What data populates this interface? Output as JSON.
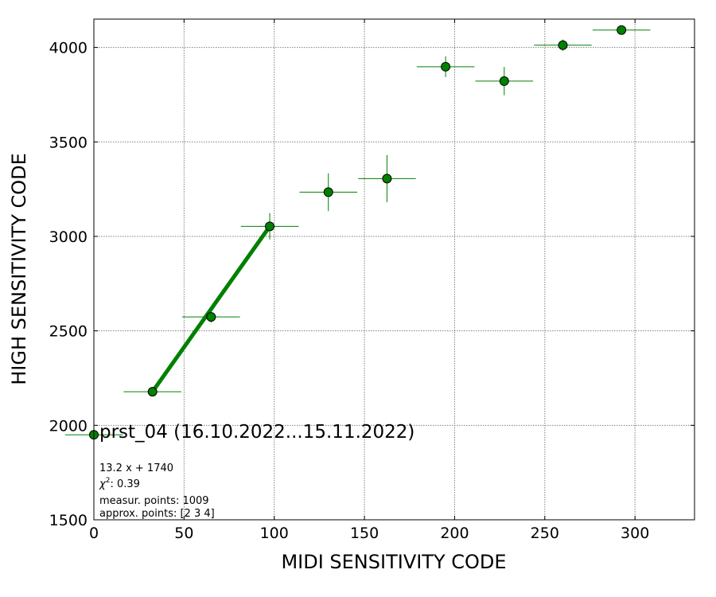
{
  "chart_data": {
    "type": "scatter",
    "xlabel": "MIDI SENSITIVITY CODE",
    "ylabel": "HIGH SENSITIVITY CODE",
    "xlim": [
      0,
      333
    ],
    "ylim": [
      1500,
      4150
    ],
    "xticks": [
      0,
      50,
      100,
      150,
      200,
      250,
      300
    ],
    "yticks": [
      1500,
      2000,
      2500,
      3000,
      3500,
      4000
    ],
    "grid": true,
    "marker_color": "#008000",
    "marker_edge_color": "#000000",
    "errorbar_color": "#008000",
    "fit_line_color": "#008000",
    "points": [
      {
        "x": 0,
        "y": 1950,
        "xerr": 16,
        "yerr": 0
      },
      {
        "x": 32.5,
        "y": 2178,
        "xerr": 16,
        "yerr": 10
      },
      {
        "x": 65,
        "y": 2574,
        "xerr": 16,
        "yerr": 30
      },
      {
        "x": 97.5,
        "y": 3053,
        "xerr": 16,
        "yerr": 70
      },
      {
        "x": 130,
        "y": 3234,
        "xerr": 16,
        "yerr": 100
      },
      {
        "x": 162.5,
        "y": 3306,
        "xerr": 16,
        "yerr": 125
      },
      {
        "x": 195,
        "y": 3898,
        "xerr": 16,
        "yerr": 55
      },
      {
        "x": 227.5,
        "y": 3822,
        "xerr": 16,
        "yerr": 75
      },
      {
        "x": 260,
        "y": 4012,
        "xerr": 16,
        "yerr": 30
      },
      {
        "x": 292.5,
        "y": 4092,
        "xerr": 16,
        "yerr": 8
      }
    ],
    "fit_line": {
      "x": [
        32.5,
        97.5
      ],
      "y": [
        2178,
        3053
      ]
    },
    "annotation": {
      "title": "prst_04 (16.10.2022...15.11.2022)",
      "fit": "13.2 x + 1740",
      "chi2_symbol": "χ",
      "chi2_exp": "2",
      "chi2_value": ": 0.39",
      "measur": "measur. points: 1009",
      "approx": "approx. points: [2 3 4]"
    }
  }
}
